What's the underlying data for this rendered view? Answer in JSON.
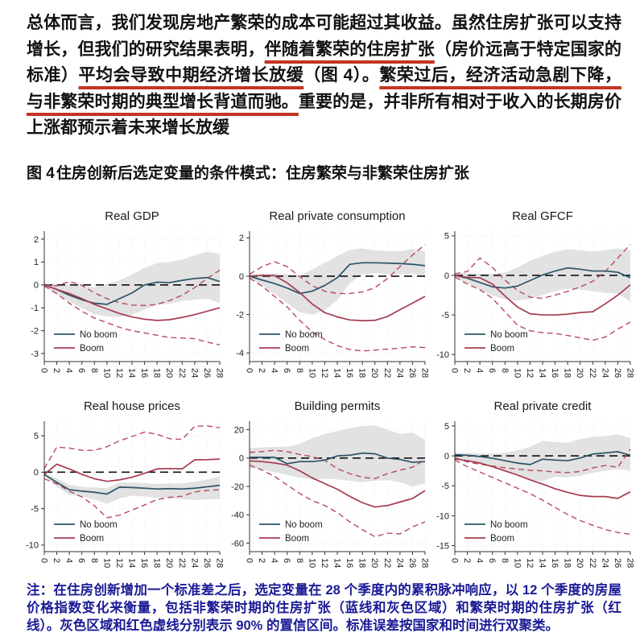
{
  "paragraph": {
    "segments": [
      {
        "text": "总体而言，我们发现房地产繁荣的成本可能超过其收益。虽然住房扩张可以支持增长，但我们的研究结果表明，",
        "underline": false
      },
      {
        "text": "伴随着繁荣的住房扩张",
        "underline": true
      },
      {
        "text": "（房价远高于特定国家的标准）",
        "underline": false
      },
      {
        "text": "平均会导致中期经济增长放缓",
        "underline": true
      },
      {
        "text": "（图 4）。",
        "underline": false
      },
      {
        "text": "繁荣过后，经济活动急剧下降，与非繁荣时期的典型增长背道而驰。",
        "underline": true
      },
      {
        "text": "重要的是，并非所有相对于收入的长期房价上涨都预示着未来增长放缓",
        "underline": false
      }
    ]
  },
  "figure": {
    "caption_prefix": "图 4",
    "caption_text": "住房创新后选定变量的条件模式：住房繁荣与非繁荣住房扩张"
  },
  "note": {
    "text": "注：在住房创新增加一个标准差之后，选定变量在 28 个季度内的累积脉冲响应，以 12 个季度的房屋价格指数变化来衡量，包括非繁荣时期的住房扩张（蓝线和灰色区域）和繁荣时期的住房扩张（红线）。灰色区域和红色虚线分别表示 90% 的置信区间。标准误差按国家和时间进行双聚类。"
  },
  "colors": {
    "no_boom_line": "#2d5468",
    "boom_line": "#a63b4f",
    "boom_ci_dash": "#b8495d",
    "band_fill": "#e2e2e2",
    "zero_line": "#111111",
    "axis": "#333333",
    "gridline": "#ebebeb",
    "tick_text": "#222222",
    "title_text": "#1a1a1a",
    "underline_red": "#c43422",
    "note_blue": "#1b1b96"
  },
  "chart_data": [
    {
      "type": "line",
      "title": "Real GDP",
      "x": [
        0,
        2,
        4,
        6,
        8,
        10,
        12,
        14,
        16,
        18,
        20,
        22,
        24,
        26,
        28
      ],
      "ylim": [
        -3.35,
        2.35
      ],
      "yticks": [
        2,
        1,
        0,
        -1,
        -2,
        -3
      ],
      "grid": true,
      "legend": {
        "position": "bottom-left",
        "entries": [
          "No boom",
          "Boom"
        ]
      },
      "band": {
        "name": "No boom 90% CI",
        "upper": [
          0.06,
          0.05,
          0.0,
          -0.05,
          -0.1,
          0.05,
          0.2,
          0.45,
          0.75,
          0.95,
          1.0,
          1.1,
          1.3,
          1.45,
          1.35
        ],
        "lower": [
          -0.06,
          -0.42,
          -0.72,
          -1.02,
          -1.28,
          -1.38,
          -1.4,
          -1.3,
          -1.08,
          -0.88,
          -0.82,
          -0.7,
          -0.65,
          -0.6,
          -0.78
        ]
      },
      "series": [
        {
          "name": "No boom",
          "color": "#2d5468",
          "dash": false,
          "values": [
            0,
            -0.2,
            -0.45,
            -0.65,
            -0.8,
            -0.85,
            -0.6,
            -0.35,
            0.0,
            0.12,
            0.1,
            0.2,
            0.28,
            0.32,
            0.15
          ]
        },
        {
          "name": "Boom",
          "color": "#a63b4f",
          "dash": false,
          "values": [
            0,
            -0.2,
            -0.38,
            -0.6,
            -0.85,
            -1.05,
            -1.25,
            -1.4,
            -1.5,
            -1.55,
            -1.52,
            -1.42,
            -1.3,
            -1.15,
            -1.0
          ]
        },
        {
          "name": "Boom 90% CI upper",
          "color": "#b8495d",
          "dash": true,
          "values": [
            0.02,
            -0.05,
            0.15,
            -0.02,
            -0.35,
            -0.6,
            -0.78,
            -0.88,
            -0.9,
            -0.85,
            -0.68,
            -0.45,
            -0.12,
            0.28,
            0.65
          ]
        },
        {
          "name": "Boom 90% CI lower",
          "color": "#b8495d",
          "dash": true,
          "values": [
            -0.05,
            -0.38,
            -0.8,
            -1.15,
            -1.45,
            -1.65,
            -1.85,
            -2.0,
            -2.1,
            -2.2,
            -2.3,
            -2.32,
            -2.35,
            -2.5,
            -2.62
          ]
        }
      ]
    },
    {
      "type": "line",
      "title": "Real private consumption",
      "x": [
        0,
        2,
        4,
        6,
        8,
        10,
        12,
        14,
        16,
        18,
        20,
        22,
        24,
        26,
        28
      ],
      "ylim": [
        -4.45,
        2.35
      ],
      "yticks": [
        2,
        0,
        -2,
        -4
      ],
      "grid": true,
      "legend": {
        "position": "bottom-left",
        "entries": [
          "No boom",
          "Boom"
        ]
      },
      "band": {
        "name": "No boom 90% CI",
        "upper": [
          0.1,
          0.1,
          0.15,
          0.1,
          0.05,
          0.35,
          0.7,
          1.05,
          1.38,
          1.45,
          1.35,
          1.3,
          1.3,
          1.42,
          1.3
        ],
        "lower": [
          -0.1,
          -0.5,
          -0.92,
          -1.4,
          -1.88,
          -2.0,
          -1.78,
          -1.25,
          -0.35,
          0.1,
          0.15,
          0.1,
          0.1,
          0.15,
          -0.1
        ]
      },
      "series": [
        {
          "name": "No boom",
          "color": "#2d5468",
          "dash": false,
          "values": [
            0,
            -0.2,
            -0.38,
            -0.62,
            -0.9,
            -0.78,
            -0.48,
            -0.08,
            0.62,
            0.7,
            0.7,
            0.68,
            0.66,
            0.62,
            0.55
          ]
        },
        {
          "name": "Boom",
          "color": "#a63b4f",
          "dash": false,
          "values": [
            0,
            0.05,
            0.03,
            -0.35,
            -0.85,
            -1.45,
            -1.9,
            -2.12,
            -2.28,
            -2.32,
            -2.3,
            -2.1,
            -1.75,
            -1.4,
            -1.05
          ]
        },
        {
          "name": "Boom 90% CI upper",
          "color": "#b8495d",
          "dash": true,
          "values": [
            0.1,
            0.5,
            0.75,
            0.5,
            -0.02,
            -0.5,
            -0.78,
            -0.9,
            -0.9,
            -0.82,
            -0.6,
            -0.12,
            0.5,
            1.1,
            1.65
          ]
        },
        {
          "name": "Boom 90% CI lower",
          "color": "#b8495d",
          "dash": true,
          "values": [
            -0.1,
            -0.52,
            -1.05,
            -1.6,
            -2.3,
            -2.9,
            -3.3,
            -3.62,
            -3.82,
            -3.9,
            -3.85,
            -3.8,
            -3.75,
            -3.68,
            -3.72
          ]
        }
      ]
    },
    {
      "type": "line",
      "title": "Real GFCF",
      "x": [
        0,
        2,
        4,
        6,
        8,
        10,
        12,
        14,
        16,
        18,
        20,
        22,
        24,
        26,
        28
      ],
      "ylim": [
        -10.9,
        5.6
      ],
      "yticks": [
        5,
        0,
        -5,
        -10
      ],
      "grid": true,
      "legend": {
        "position": "bottom-left",
        "entries": [
          "No boom",
          "Boom"
        ]
      },
      "band": {
        "name": "No boom 90% CI",
        "upper": [
          0.3,
          0.3,
          0.2,
          0.2,
          0.35,
          1.0,
          1.85,
          2.45,
          3.0,
          3.3,
          3.2,
          3.0,
          3.2,
          3.4,
          3.2
        ],
        "lower": [
          -0.3,
          -1.0,
          -1.85,
          -2.55,
          -3.05,
          -3.2,
          -3.0,
          -2.5,
          -2.0,
          -1.7,
          -1.8,
          -2.0,
          -2.2,
          -2.3,
          -3.3
        ]
      },
      "series": [
        {
          "name": "No boom",
          "color": "#2d5468",
          "dash": false,
          "values": [
            0,
            -0.35,
            -0.9,
            -1.45,
            -1.6,
            -1.35,
            -0.65,
            0.05,
            0.55,
            0.95,
            0.78,
            0.55,
            0.55,
            0.4,
            -0.3
          ]
        },
        {
          "name": "Boom",
          "color": "#a63b4f",
          "dash": false,
          "values": [
            0,
            -0.25,
            -0.3,
            -1.1,
            -2.6,
            -4.0,
            -4.85,
            -5.0,
            -5.0,
            -4.9,
            -4.7,
            -4.6,
            -3.6,
            -2.5,
            -1.2
          ]
        },
        {
          "name": "Boom 90% CI upper",
          "color": "#b8495d",
          "dash": true,
          "values": [
            0.2,
            0.5,
            2.2,
            1.0,
            -0.6,
            -1.9,
            -2.75,
            -2.9,
            -2.5,
            -2.0,
            -1.45,
            -0.75,
            0.5,
            2.2,
            3.9
          ]
        },
        {
          "name": "Boom 90% CI lower",
          "color": "#b8495d",
          "dash": true,
          "values": [
            -0.2,
            -1.1,
            -1.8,
            -2.9,
            -4.6,
            -6.3,
            -7.0,
            -7.25,
            -7.35,
            -7.6,
            -7.9,
            -8.2,
            -7.8,
            -6.8,
            -5.9
          ]
        }
      ]
    },
    {
      "type": "line",
      "title": "Real house prices",
      "x": [
        0,
        2,
        4,
        6,
        8,
        10,
        12,
        14,
        16,
        18,
        20,
        22,
        24,
        26,
        28
      ],
      "ylim": [
        -10.9,
        7.0
      ],
      "yticks": [
        5,
        0,
        -5,
        -10
      ],
      "grid": true,
      "legend": {
        "position": "bottom-left",
        "entries": [
          "No boom",
          "Boom"
        ]
      },
      "band": {
        "name": "No boom 90% CI",
        "upper": [
          -0.15,
          -0.85,
          -1.7,
          -2.0,
          -2.1,
          -2.2,
          -1.4,
          -1.4,
          -1.5,
          -1.6,
          -1.55,
          -1.55,
          -1.3,
          -1.0,
          -0.6
        ],
        "lower": [
          -0.5,
          -2.0,
          -3.1,
          -3.35,
          -3.7,
          -4.35,
          -3.6,
          -3.2,
          -3.35,
          -3.5,
          -3.55,
          -3.7,
          -3.8,
          -3.75,
          -3.7
        ]
      },
      "series": [
        {
          "name": "No boom",
          "color": "#2d5468",
          "dash": false,
          "values": [
            -0.3,
            -1.4,
            -2.4,
            -2.6,
            -2.75,
            -3.0,
            -2.05,
            -2.1,
            -2.2,
            -2.3,
            -2.25,
            -2.3,
            -2.2,
            -2.0,
            -1.8
          ]
        },
        {
          "name": "Boom",
          "color": "#a63b4f",
          "dash": false,
          "values": [
            -0.3,
            1.1,
            0.45,
            -0.3,
            -0.9,
            -1.25,
            -1.05,
            -0.7,
            -0.15,
            0.45,
            0.5,
            0.45,
            1.7,
            1.72,
            1.8
          ]
        },
        {
          "name": "Boom 90% CI upper",
          "color": "#b8495d",
          "dash": true,
          "values": [
            0.5,
            3.45,
            3.3,
            3.0,
            3.0,
            3.5,
            4.3,
            4.9,
            5.5,
            5.2,
            4.6,
            4.5,
            6.3,
            6.35,
            6.1
          ]
        },
        {
          "name": "Boom 90% CI lower",
          "color": "#b8495d",
          "dash": true,
          "values": [
            -0.9,
            -1.6,
            -2.6,
            -3.4,
            -4.6,
            -6.25,
            -5.9,
            -5.2,
            -4.5,
            -3.75,
            -3.45,
            -3.3,
            -2.7,
            -2.5,
            -2.4
          ]
        }
      ]
    },
    {
      "type": "line",
      "title": "Building permits",
      "x": [
        0,
        2,
        4,
        6,
        8,
        10,
        12,
        14,
        16,
        18,
        20,
        22,
        24,
        26,
        28
      ],
      "ylim": [
        -66,
        26
      ],
      "yticks": [
        20,
        0,
        -20,
        -40,
        -60
      ],
      "grid": true,
      "legend": {
        "position": "bottom-left",
        "entries": [
          "No boom",
          "Boom"
        ]
      },
      "band": {
        "name": "No boom 90% CI",
        "upper": [
          7,
          7.5,
          8,
          8,
          10,
          14,
          17,
          19,
          21,
          22.5,
          23,
          20,
          17,
          18,
          13
        ],
        "lower": [
          -7,
          -8,
          -10,
          -12,
          -14,
          -15,
          -14.5,
          -15,
          -16,
          -17,
          -16,
          -15.5,
          -17,
          -20,
          -18
        ]
      },
      "series": [
        {
          "name": "No boom",
          "color": "#2d5468",
          "dash": false,
          "values": [
            0.5,
            0.5,
            0.5,
            -4,
            -2.5,
            -2.5,
            -1.5,
            1.5,
            2,
            3.5,
            3,
            0,
            -1,
            -3,
            -2.5
          ]
        },
        {
          "name": "Boom",
          "color": "#a63b4f",
          "dash": false,
          "values": [
            -2,
            -2.5,
            -3.5,
            -5,
            -9,
            -14,
            -18,
            -22,
            -27,
            -31.5,
            -34.5,
            -33.5,
            -31,
            -28.5,
            -23
          ]
        },
        {
          "name": "Boom 90% CI upper",
          "color": "#b8495d",
          "dash": true,
          "values": [
            4,
            4.5,
            5.5,
            4.5,
            2.5,
            1,
            -1.5,
            -7.5,
            -11,
            -13.5,
            -14.5,
            -11,
            -8.5,
            -6.5,
            -1
          ]
        },
        {
          "name": "Boom 90% CI lower",
          "color": "#b8495d",
          "dash": true,
          "values": [
            -5,
            -8.5,
            -13,
            -19,
            -25,
            -30,
            -33.5,
            -38.5,
            -45,
            -50.5,
            -55.5,
            -53,
            -53.5,
            -48.5,
            -45
          ]
        }
      ]
    },
    {
      "type": "line",
      "title": "Real private credit",
      "x": [
        0,
        2,
        4,
        6,
        8,
        10,
        12,
        14,
        16,
        18,
        20,
        22,
        24,
        26,
        28
      ],
      "ylim": [
        -16,
        5.8
      ],
      "yticks": [
        5,
        0,
        -5,
        -10,
        -15
      ],
      "grid": true,
      "legend": {
        "position": "bottom-left",
        "entries": [
          "No boom",
          "Boom"
        ]
      },
      "band": {
        "name": "No boom 90% CI",
        "upper": [
          0.5,
          0.5,
          0.4,
          0.4,
          0.5,
          0.9,
          1.5,
          2.5,
          2.3,
          2.2,
          2.8,
          3.2,
          3.3,
          3.6,
          3.0
        ],
        "lower": [
          -0.3,
          -0.7,
          -1.2,
          -1.8,
          -2.5,
          -3.3,
          -4.0,
          -4.2,
          -3.5,
          -3.6,
          -3.3,
          -2.8,
          -2.5,
          -2.2,
          -2.5
        ]
      },
      "series": [
        {
          "name": "No boom",
          "color": "#2d5468",
          "dash": false,
          "values": [
            0.2,
            0.1,
            -0.1,
            -0.4,
            -0.8,
            -1.2,
            -1.45,
            -0.55,
            -0.7,
            -0.8,
            -0.35,
            0.3,
            0.5,
            0.7,
            0.1
          ]
        },
        {
          "name": "Boom",
          "color": "#a63b4f",
          "dash": false,
          "values": [
            -0.5,
            -0.8,
            -1.2,
            -1.8,
            -2.5,
            -3.2,
            -4.0,
            -4.7,
            -5.5,
            -6.1,
            -6.6,
            -6.8,
            -6.8,
            -7.1,
            -6.0
          ]
        },
        {
          "name": "Boom 90% CI upper",
          "color": "#b8495d",
          "dash": true,
          "values": [
            -0.3,
            -1.0,
            -1.4,
            -1.7,
            -2.0,
            -2.2,
            -2.4,
            -2.5,
            -2.7,
            -2.8,
            -2.6,
            -2.0,
            -1.6,
            -1.9,
            1.1
          ]
        },
        {
          "name": "Boom 90% CI lower",
          "color": "#b8495d",
          "dash": true,
          "values": [
            -0.7,
            -1.8,
            -2.7,
            -3.6,
            -4.5,
            -5.4,
            -6.3,
            -7.4,
            -8.6,
            -9.8,
            -10.8,
            -11.6,
            -12.3,
            -12.8,
            -13.1
          ]
        }
      ]
    }
  ]
}
